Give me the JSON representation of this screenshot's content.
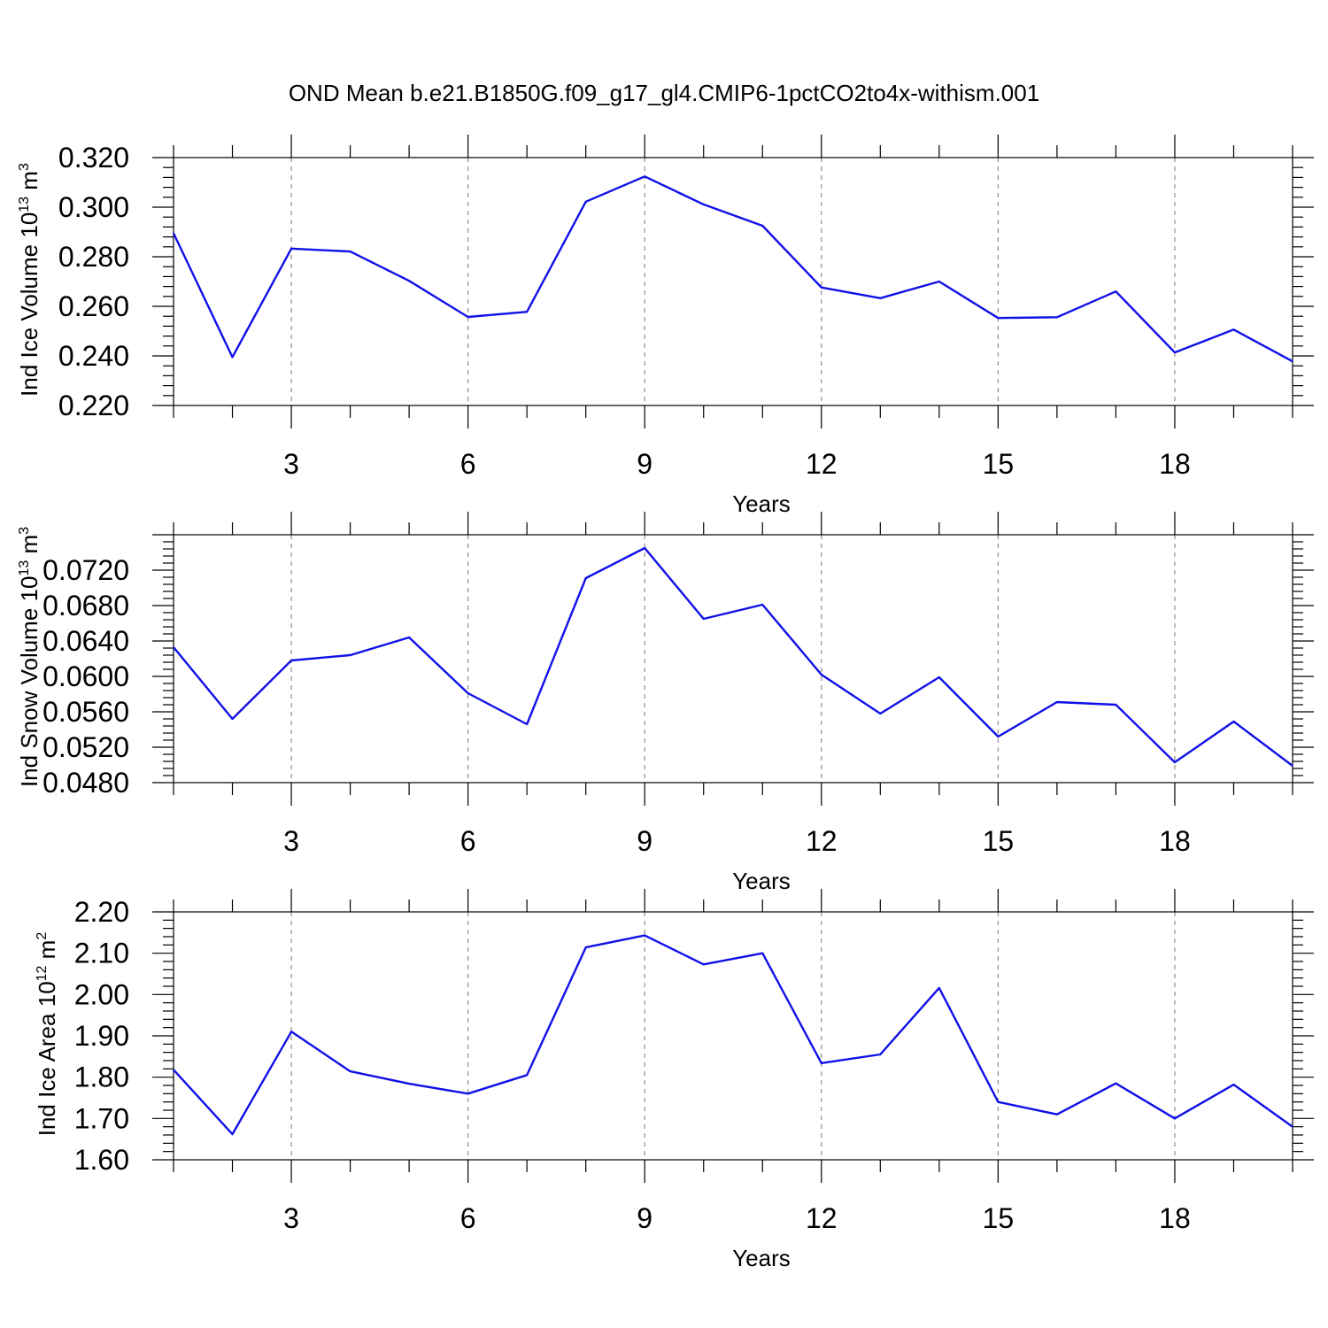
{
  "title": "OND Mean b.e21.B1850G.f09_g17_gl4.CMIP6-1pctCO2to4x-withism.001",
  "colors": {
    "line": "#1010e8",
    "axis": "#000000",
    "grid": "#777777"
  },
  "chart_data": [
    {
      "type": "line",
      "ylabel": {
        "text": "Ind Ice Volume 10",
        "sup": "13",
        "unit": " m",
        "unit_sup": "3"
      },
      "xlabel": "Years",
      "xlim": [
        1,
        20
      ],
      "ylim": [
        0.22,
        0.32
      ],
      "xticks": [
        3,
        6,
        9,
        12,
        15,
        18
      ],
      "yticks": [
        0.22,
        0.24,
        0.26,
        0.28,
        0.3,
        0.32
      ],
      "ytick_labels": [
        "0.220",
        "0.240",
        "0.260",
        "0.280",
        "0.300",
        "0.320"
      ],
      "grid": "vertical dashed at major x ticks",
      "series": [
        {
          "x": [
            1,
            2,
            3,
            4,
            5,
            6,
            7,
            8,
            9,
            10,
            11,
            12,
            13,
            14,
            15,
            16,
            17,
            18,
            19,
            20
          ],
          "values": [
            0.2895,
            0.2395,
            0.2833,
            0.2821,
            0.2703,
            0.2557,
            0.2578,
            0.3022,
            0.3124,
            0.3011,
            0.2925,
            0.2676,
            0.2633,
            0.27,
            0.2553,
            0.2556,
            0.266,
            0.2414,
            0.2506,
            0.2378
          ]
        }
      ]
    },
    {
      "type": "line",
      "ylabel": {
        "text": "Ind Snow Volume 10",
        "sup": "13",
        "unit": " m",
        "unit_sup": "3"
      },
      "xlabel": "Years",
      "xlim": [
        1,
        20
      ],
      "ylim": [
        0.048,
        0.076
      ],
      "xticks": [
        3,
        6,
        9,
        12,
        15,
        18
      ],
      "yticks": [
        0.048,
        0.052,
        0.056,
        0.06,
        0.064,
        0.068,
        0.072
      ],
      "ytick_labels": [
        "0.0480",
        "0.0520",
        "0.0560",
        "0.0600",
        "0.0640",
        "0.0680",
        "0.0720"
      ],
      "grid": "vertical dashed at major x ticks",
      "series": [
        {
          "x": [
            1,
            2,
            3,
            4,
            5,
            6,
            7,
            8,
            9,
            10,
            11,
            12,
            13,
            14,
            15,
            16,
            17,
            18,
            19,
            20
          ],
          "values": [
            0.0633,
            0.0552,
            0.0618,
            0.0624,
            0.0644,
            0.0581,
            0.0546,
            0.0711,
            0.0745,
            0.0665,
            0.0681,
            0.0602,
            0.0558,
            0.0599,
            0.0532,
            0.0571,
            0.0568,
            0.0503,
            0.0549,
            0.0499
          ]
        }
      ]
    },
    {
      "type": "line",
      "ylabel": {
        "text": "Ind Ice Area 10",
        "sup": "12",
        "unit": " m",
        "unit_sup": "2"
      },
      "xlabel": "Years",
      "xlim": [
        1,
        20
      ],
      "ylim": [
        1.6,
        2.2
      ],
      "xticks": [
        3,
        6,
        9,
        12,
        15,
        18
      ],
      "yticks": [
        1.6,
        1.7,
        1.8,
        1.9,
        2.0,
        2.1,
        2.2
      ],
      "ytick_labels": [
        "1.60",
        "1.70",
        "1.80",
        "1.90",
        "2.00",
        "2.10",
        "2.20"
      ],
      "grid": "vertical dashed at major x ticks",
      "series": [
        {
          "x": [
            1,
            2,
            3,
            4,
            5,
            6,
            7,
            8,
            9,
            10,
            11,
            12,
            13,
            14,
            15,
            16,
            17,
            18,
            19,
            20
          ],
          "values": [
            1.818,
            1.662,
            1.91,
            1.814,
            1.784,
            1.76,
            1.805,
            2.114,
            2.143,
            2.073,
            2.1,
            1.834,
            1.855,
            2.016,
            1.74,
            1.71,
            1.785,
            1.7,
            1.782,
            1.68
          ]
        }
      ]
    }
  ]
}
